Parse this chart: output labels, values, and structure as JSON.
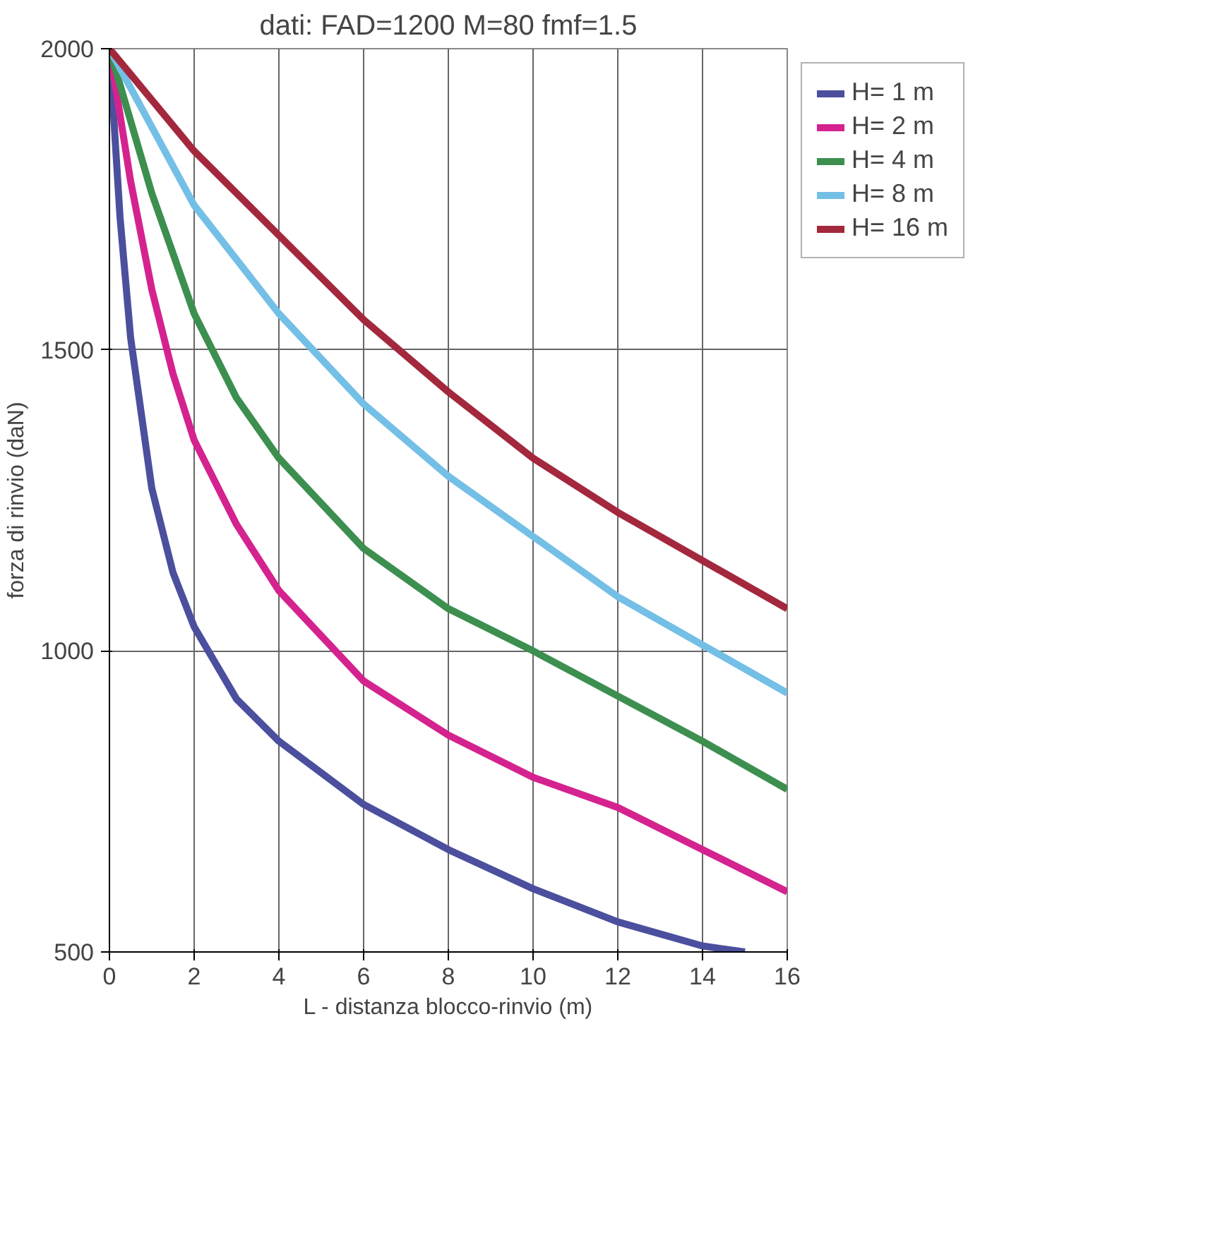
{
  "chart_data": {
    "type": "line",
    "title": "dati: FAD=1200 M=80 fmf=1.5",
    "xlabel": "L - distanza blocco-rinvio (m)",
    "ylabel": "forza di rinvio (daN)",
    "xlim": [
      0,
      16
    ],
    "xticks": [
      0,
      2,
      4,
      6,
      8,
      10,
      12,
      14,
      16
    ],
    "ylim": [
      500,
      2000
    ],
    "yticks": [
      500,
      1000,
      1500,
      2000
    ],
    "grid": true,
    "legend": "right",
    "marker": "none",
    "line_style": "solid",
    "series": [
      {
        "name": "H= 1 m",
        "color": "#4b4f9e",
        "x": [
          0,
          0.25,
          0.5,
          1,
          1.5,
          2,
          3,
          4,
          6,
          8,
          10,
          12,
          14,
          15
        ],
        "values": [
          2000,
          1720,
          1520,
          1270,
          1130,
          1040,
          920,
          850,
          745,
          670,
          605,
          550,
          510,
          500
        ]
      },
      {
        "name": "H= 2 m",
        "color": "#d4238f",
        "x": [
          0,
          0.5,
          1,
          1.5,
          2,
          3,
          4,
          6,
          8,
          10,
          12,
          14,
          16
        ],
        "values": [
          2000,
          1780,
          1600,
          1460,
          1350,
          1210,
          1100,
          950,
          860,
          790,
          740,
          670,
          600
        ]
      },
      {
        "name": "H= 4 m",
        "color": "#3d8f50",
        "x": [
          0,
          1,
          2,
          3,
          4,
          6,
          8,
          10,
          12,
          14,
          16
        ],
        "values": [
          2000,
          1760,
          1560,
          1420,
          1320,
          1170,
          1070,
          1000,
          925,
          850,
          770
        ]
      },
      {
        "name": "H= 8 m",
        "color": "#74bfe6",
        "x": [
          0,
          2,
          4,
          6,
          8,
          10,
          12,
          14,
          16
        ],
        "values": [
          2000,
          1740,
          1560,
          1410,
          1290,
          1190,
          1090,
          1010,
          930
        ]
      },
      {
        "name": "H= 16 m",
        "color": "#a3283d",
        "x": [
          0,
          2,
          4,
          6,
          8,
          10,
          12,
          14,
          16
        ],
        "values": [
          2000,
          1830,
          1690,
          1550,
          1430,
          1320,
          1230,
          1150,
          1070
        ]
      }
    ]
  }
}
